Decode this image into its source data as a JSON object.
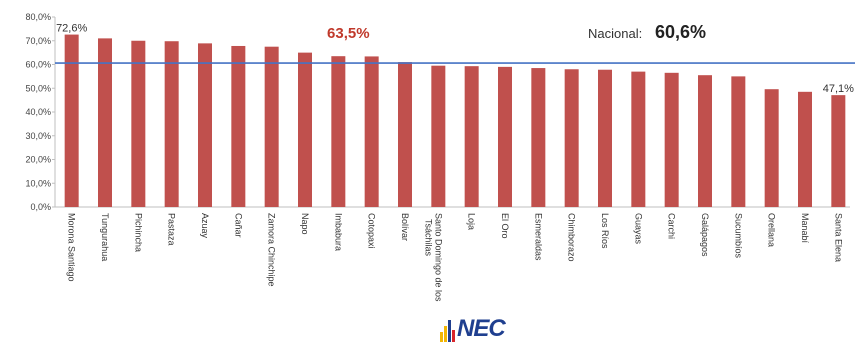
{
  "chart_data": {
    "type": "bar",
    "categories": [
      "Morona Santiago",
      "Tungurahua",
      "Pichincha",
      "Pastaza",
      "Azuay",
      "Cañar",
      "Zamora Chinchipe",
      "Napo",
      "Imbabura",
      "Cotopaxi",
      "Bolívar",
      "Santo Domingo de los Tsáchilas",
      "Loja",
      "El Oro",
      "Esmeraldas",
      "Chimborazo",
      "Los Ríos",
      "Guayas",
      "Carchi",
      "Galápagos",
      "Sucumbíos",
      "Orellana",
      "Manabí",
      "Santa Elena"
    ],
    "values": [
      72.6,
      71.0,
      70.0,
      69.8,
      68.9,
      67.8,
      67.5,
      65.0,
      63.5,
      63.4,
      61.0,
      59.5,
      59.3,
      59.0,
      58.5,
      58.0,
      57.8,
      57.0,
      56.5,
      55.5,
      55.0,
      49.6,
      48.5,
      47.1
    ],
    "yticks": [
      "0,0%",
      "10,0%",
      "20,0%",
      "30,0%",
      "40,0%",
      "50,0%",
      "60,0%",
      "70,0%",
      "80,0%"
    ],
    "ylim": [
      0,
      80
    ],
    "bar_color": "#c0504d",
    "reference_line": {
      "value": 60.6,
      "color": "#4472c4"
    },
    "annotations": [
      {
        "text": "72,6%",
        "category_index": 0,
        "color": "#333333"
      },
      {
        "text": "63,5%",
        "category_index": 8,
        "color": "#c0392b"
      },
      {
        "text": "47,1%",
        "category_index": 23,
        "color": "#333333"
      }
    ],
    "national": {
      "label": "Nacional:",
      "value": "60,6%"
    },
    "grid": false,
    "legend": "none"
  },
  "logo": {
    "text": "NEC",
    "bar_colors": [
      "#f2b705",
      "#1f3f8f",
      "#d9252a"
    ]
  }
}
